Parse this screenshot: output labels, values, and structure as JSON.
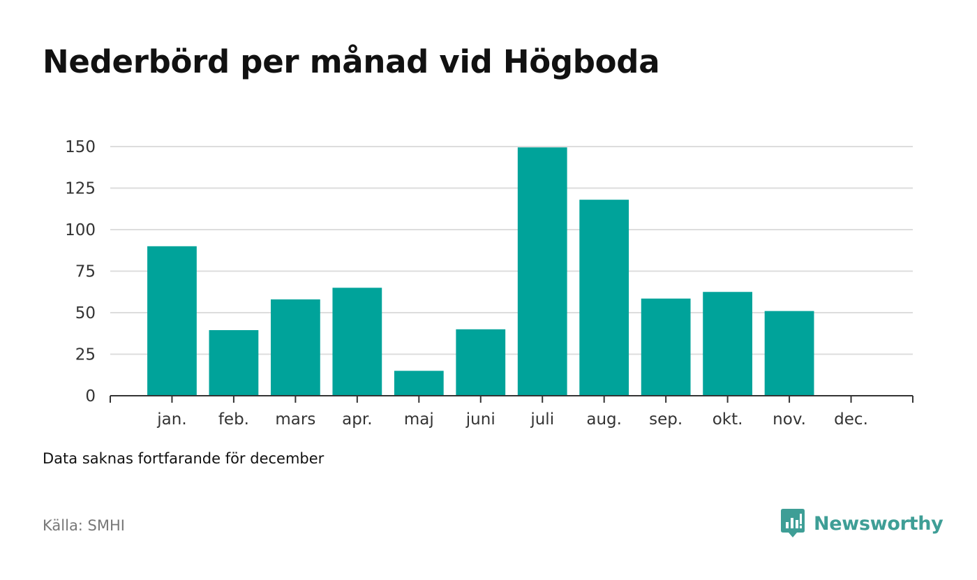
{
  "title": "Nederbörd per månad vid Högboda",
  "note": "Data saknas fortfarande för december",
  "source": "Källa: SMHI",
  "brand": {
    "name": "Newsworthy",
    "icon": "newsworthy-chart-bubble-icon",
    "color": "#3e9e96"
  },
  "chart_data": {
    "type": "bar",
    "categories": [
      "jan.",
      "feb.",
      "mars",
      "apr.",
      "maj",
      "juni",
      "juli",
      "aug.",
      "sep.",
      "okt.",
      "nov.",
      "dec."
    ],
    "values": [
      90,
      39.5,
      58,
      65,
      15,
      40,
      149.5,
      118,
      58.5,
      62.5,
      51,
      null
    ],
    "yticks": [
      0,
      25,
      50,
      75,
      100,
      125,
      150
    ],
    "ylim": [
      0,
      150
    ],
    "bar_color": "#00a39a",
    "grid": true,
    "title": "Nederbörd per månad vid Högboda",
    "xlabel": "",
    "ylabel": ""
  }
}
